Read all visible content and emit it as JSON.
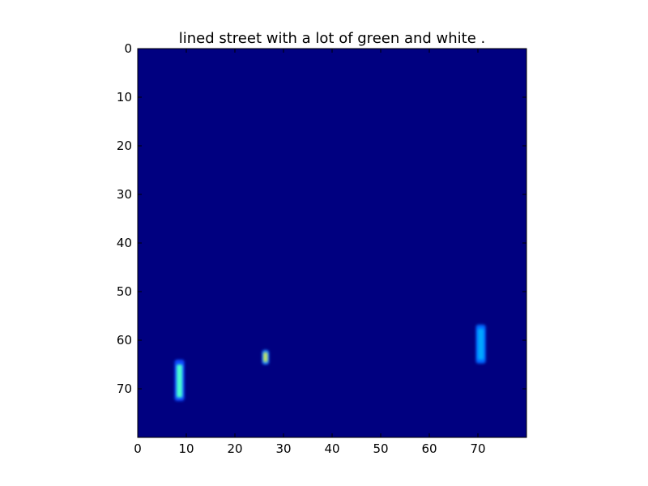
{
  "chart_data": {
    "type": "heatmap",
    "title": "lined street with a lot of green and white .",
    "xlabel": "",
    "ylabel": "",
    "colormap": "jet",
    "background_color": "#000080",
    "xlim": [
      0,
      80
    ],
    "ylim": [
      80,
      0
    ],
    "grid": false,
    "x_ticks": [
      0,
      10,
      20,
      30,
      40,
      50,
      60,
      70
    ],
    "y_ticks": [
      0,
      10,
      20,
      30,
      40,
      50,
      60,
      70
    ],
    "x_tick_labels": [
      "0",
      "10",
      "20",
      "30",
      "40",
      "50",
      "60",
      "70"
    ],
    "y_tick_labels": [
      "0",
      "10",
      "20",
      "30",
      "40",
      "50",
      "60",
      "70"
    ],
    "blobs": [
      {
        "name": "left-bar",
        "x": [
          7.6,
          9.6
        ],
        "y": [
          64,
          72.5
        ],
        "core_y": [
          65,
          71.8
        ],
        "halo_color": "#0a4cff",
        "core_color": "#49ffd0"
      },
      {
        "name": "middle-dots",
        "x": [
          25.6,
          27.0
        ],
        "y": [
          62,
          65
        ],
        "core_y": [
          62.5,
          64.5
        ],
        "halo_color": "#1e7fff",
        "core_color": "#c8e860"
      },
      {
        "name": "right-bar",
        "x": [
          69.6,
          71.6
        ],
        "y": [
          56.8,
          64.8
        ],
        "core_y": [
          57.6,
          64.0
        ],
        "halo_color": "#0066ff",
        "core_color": "#00a8ff"
      }
    ]
  }
}
